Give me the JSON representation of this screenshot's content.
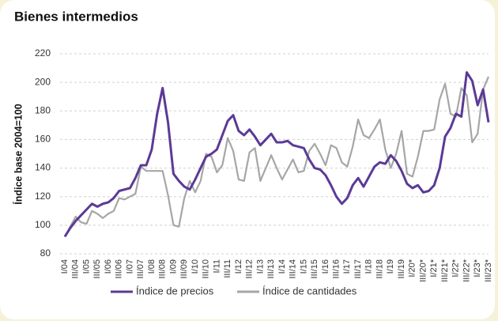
{
  "chart_data": {
    "type": "line",
    "title": "Bienes intermedios",
    "ylabel": "Índice base 2004=100",
    "categories": [
      "I/04",
      null,
      "III/04",
      null,
      "I/05",
      null,
      "III/05",
      null,
      "I/06",
      null,
      "III/06",
      null,
      "I/07",
      null,
      "III/07",
      null,
      "I/08",
      null,
      "III/08",
      null,
      "I/09",
      null,
      "III/09",
      null,
      "I/10",
      null,
      "III/10",
      null,
      "I/11",
      null,
      "III/11",
      null,
      "I/12",
      null,
      "III/12",
      null,
      "I/13",
      null,
      "III/13",
      null,
      "I/14",
      null,
      "III/14",
      null,
      "I/15",
      null,
      "III/15",
      null,
      "I/16",
      null,
      "III/16",
      null,
      "I/17",
      null,
      "III/17",
      null,
      "I/18",
      null,
      "III/18",
      null,
      "I/19",
      null,
      "III/19",
      null,
      "I/20*",
      null,
      "III/20*",
      null,
      "I/21*",
      null,
      "III/21*",
      null,
      "I/22*",
      null,
      "III/22*",
      null,
      "I/23*",
      null,
      "III/23*"
    ],
    "series": [
      {
        "name": "Índice de precios",
        "color": "#5b3a96",
        "values": [
          92,
          98,
          103,
          107,
          111,
          115,
          113,
          115,
          116,
          119,
          124,
          125,
          126,
          133,
          142,
          142,
          153,
          178,
          196,
          172,
          136,
          131,
          127,
          125,
          132,
          140,
          148,
          150,
          153,
          163,
          173,
          177,
          166,
          163,
          167,
          162,
          156,
          160,
          164,
          158,
          158,
          159,
          156,
          155,
          154,
          146,
          140,
          139,
          135,
          128,
          120,
          115,
          119,
          128,
          133,
          127,
          134,
          141,
          144,
          143,
          149,
          145,
          138,
          129,
          126,
          128,
          123,
          124,
          128,
          140,
          162,
          168,
          178,
          176,
          207,
          201,
          184,
          195,
          172
        ]
      },
      {
        "name": "Índice de cantidades",
        "color": "#a6a6a6",
        "values": [
          92,
          99,
          106,
          102,
          101,
          110,
          108,
          105,
          108,
          110,
          119,
          118,
          120,
          122,
          141,
          138,
          138,
          138,
          138,
          121,
          100,
          99,
          119,
          131,
          123,
          131,
          150,
          148,
          137,
          142,
          161,
          152,
          132,
          131,
          151,
          154,
          131,
          140,
          149,
          140,
          132,
          139,
          146,
          137,
          138,
          152,
          157,
          150,
          142,
          156,
          154,
          144,
          141,
          155,
          174,
          163,
          161,
          167,
          174,
          153,
          140,
          150,
          166,
          136,
          134,
          148,
          166,
          166,
          167,
          188,
          199,
          178,
          176,
          196,
          191,
          158,
          164,
          195,
          204
        ]
      }
    ],
    "ylim": [
      80,
      220
    ],
    "yticks": [
      80,
      100,
      120,
      140,
      160,
      180,
      200,
      220
    ],
    "grid": true
  }
}
